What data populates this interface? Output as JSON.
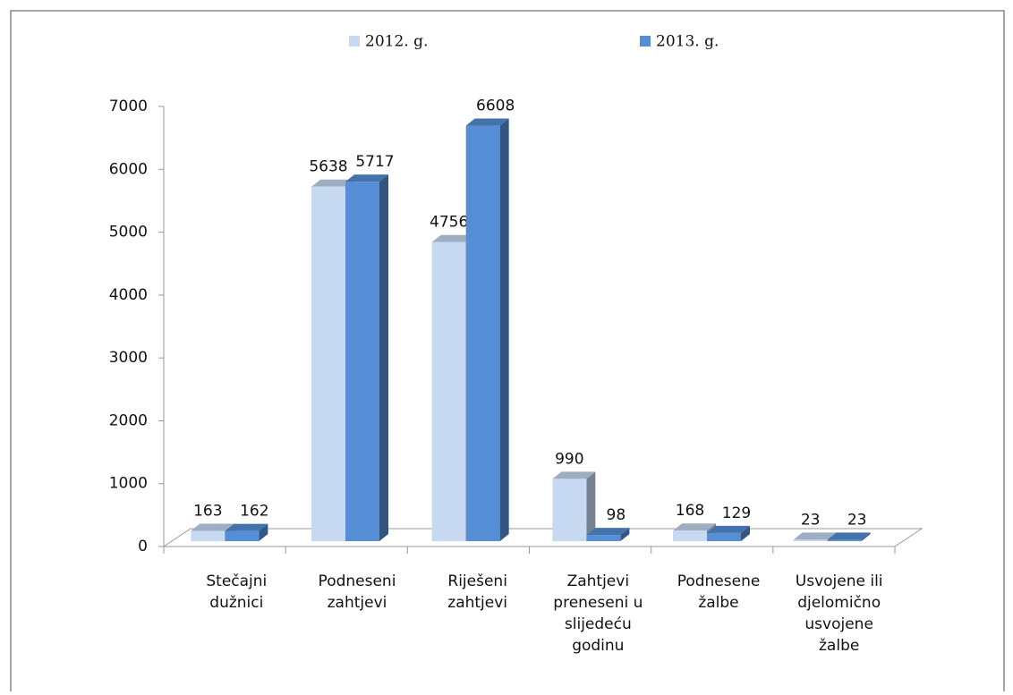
{
  "chart_data": {
    "type": "bar3d",
    "categories": [
      "Stečajni\ndužnici",
      "Podneseni\nzahtjevi",
      "Riješeni\nzahtjevi",
      "Zahtjevi\npreneseni u\nslijedeću\ngodinu",
      "Podnesene\nžalbe",
      "Usvojene ili\ndjelomično\nusvojene\nžalbe"
    ],
    "series": [
      {
        "name": "2012. g.",
        "color": "#c6d9f1",
        "values": [
          163,
          5638,
          4756,
          990,
          168,
          23
        ]
      },
      {
        "name": "2013. g.",
        "color": "#558ed5",
        "values": [
          162,
          5717,
          6608,
          98,
          129,
          23
        ]
      }
    ],
    "ylim": [
      0,
      7000
    ],
    "yticks": [
      0,
      1000,
      2000,
      3000,
      4000,
      5000,
      6000,
      7000
    ],
    "legend": "top"
  }
}
